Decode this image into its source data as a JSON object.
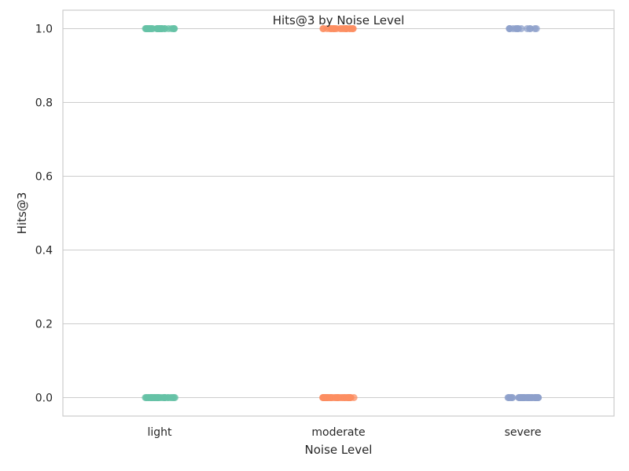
{
  "chart_data": {
    "type": "scatter",
    "title": "Hits@3 by Noise Level",
    "xlabel": "Noise Level",
    "ylabel": "Hits@3",
    "categories": [
      "light",
      "moderate",
      "severe"
    ],
    "ylim": [
      -0.05,
      1.05
    ],
    "yticks": [
      0.0,
      0.2,
      0.4,
      0.6,
      0.8,
      1.0
    ],
    "ytick_labels": [
      "0.0",
      "0.2",
      "0.4",
      "0.6",
      "0.8",
      "1.0"
    ],
    "grid": "horizontal",
    "series": [
      {
        "category": "light",
        "color": "#66c2a5",
        "y_values": [
          1,
          1,
          1,
          1,
          1,
          1,
          1,
          1,
          1,
          1,
          1,
          1,
          1,
          1,
          1,
          1,
          1,
          1,
          1,
          1,
          1,
          1,
          1,
          1,
          1,
          1,
          1,
          1,
          1,
          1,
          0,
          0,
          0,
          0,
          0,
          0,
          0,
          0,
          0,
          0,
          0,
          0,
          0,
          0,
          0,
          0,
          0,
          0,
          0,
          0,
          0,
          0,
          0,
          0,
          0,
          0,
          0,
          0,
          0,
          0,
          0,
          0,
          0,
          0,
          0,
          0,
          0,
          0,
          0,
          0
        ]
      },
      {
        "category": "moderate",
        "color": "#fc8d62",
        "y_values": [
          1,
          1,
          1,
          1,
          1,
          1,
          1,
          1,
          1,
          1,
          1,
          1,
          1,
          1,
          1,
          1,
          1,
          1,
          1,
          1,
          1,
          1,
          1,
          1,
          0,
          0,
          0,
          0,
          0,
          0,
          0,
          0,
          0,
          0,
          0,
          0,
          0,
          0,
          0,
          0,
          0,
          0,
          0,
          0,
          0,
          0,
          0,
          0,
          0,
          0,
          0,
          0,
          0,
          0,
          0,
          0,
          0,
          0,
          0,
          0,
          0,
          0,
          0,
          0,
          0,
          0,
          0,
          0,
          0,
          0
        ]
      },
      {
        "category": "severe",
        "color": "#8da0cb",
        "y_values": [
          1,
          1,
          1,
          1,
          1,
          1,
          1,
          1,
          1,
          1,
          1,
          1,
          1,
          1,
          0,
          0,
          0,
          0,
          0,
          0,
          0,
          0,
          0,
          0,
          0,
          0,
          0,
          0,
          0,
          0,
          0,
          0,
          0,
          0,
          0,
          0,
          0,
          0,
          0,
          0,
          0,
          0,
          0,
          0,
          0,
          0,
          0,
          0,
          0,
          0,
          0,
          0,
          0,
          0,
          0,
          0,
          0,
          0,
          0,
          0
        ]
      }
    ]
  }
}
